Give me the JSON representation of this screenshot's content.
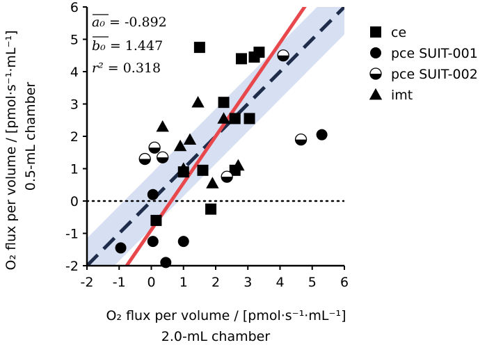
{
  "chart_data": {
    "type": "scatter",
    "xlabel_line1": "O₂ flux per volume / [pmol·s⁻¹·mL⁻¹]",
    "xlabel_line2": "2.0-mL chamber",
    "ylabel_line1": "O₂ flux per volume / [pmol·s⁻¹·mL⁻¹]",
    "ylabel_line2": "0.5-mL chamber",
    "xlim": [
      -2,
      6
    ],
    "ylim": [
      -2,
      6
    ],
    "xticks": [
      -2,
      -1,
      0,
      1,
      2,
      3,
      4,
      5,
      6
    ],
    "yticks": [
      -2,
      -1,
      0,
      1,
      2,
      3,
      4,
      5,
      6
    ],
    "annotations": {
      "a0_label": "a₀",
      "a0_value": " = -0.892",
      "b0_label": "b₀",
      "b0_value": " = 1.447",
      "r2_label": "r²",
      "r2_value": " = 0.318"
    },
    "identity_line": {
      "from": [
        -2,
        -2
      ],
      "to": [
        6,
        6
      ],
      "style": "dashed",
      "color": "#1f2d4a"
    },
    "confidence_band": {
      "half_width": 0.85,
      "color": "#c9d6ee"
    },
    "fit_line": {
      "intercept": -0.892,
      "slope": 1.447,
      "color": "#e8474c"
    },
    "zero_line": {
      "y": 0,
      "style": "dotted"
    },
    "legend": {
      "placement": "right"
    },
    "series": [
      {
        "name": "ce",
        "marker": "square",
        "points": [
          [
            0.15,
            -0.6
          ],
          [
            1.0,
            0.9
          ],
          [
            1.6,
            0.95
          ],
          [
            1.5,
            4.75
          ],
          [
            1.85,
            -0.25
          ],
          [
            2.25,
            3.05
          ],
          [
            2.6,
            0.95
          ],
          [
            2.6,
            2.55
          ],
          [
            2.8,
            4.4
          ],
          [
            3.05,
            2.55
          ],
          [
            3.2,
            4.45
          ],
          [
            3.35,
            4.6
          ]
        ]
      },
      {
        "name": "pce SUIT-001",
        "marker": "circle",
        "points": [
          [
            -0.95,
            -1.45
          ],
          [
            0.05,
            0.2
          ],
          [
            0.05,
            -1.25
          ],
          [
            0.45,
            -1.9
          ],
          [
            1.0,
            -1.25
          ],
          [
            5.3,
            2.05
          ]
        ]
      },
      {
        "name": "pce SUIT-002",
        "marker": "half-circle",
        "points": [
          [
            -0.2,
            1.3
          ],
          [
            0.1,
            1.65
          ],
          [
            0.35,
            1.35
          ],
          [
            2.35,
            0.75
          ],
          [
            4.1,
            4.5
          ],
          [
            4.65,
            1.9
          ]
        ]
      },
      {
        "name": "imt",
        "marker": "triangle",
        "points": [
          [
            0.35,
            2.3
          ],
          [
            0.9,
            1.7
          ],
          [
            1.0,
            1.0
          ],
          [
            1.2,
            1.9
          ],
          [
            1.45,
            3.05
          ],
          [
            1.9,
            0.55
          ],
          [
            2.25,
            2.55
          ],
          [
            2.7,
            1.1
          ]
        ]
      }
    ]
  }
}
